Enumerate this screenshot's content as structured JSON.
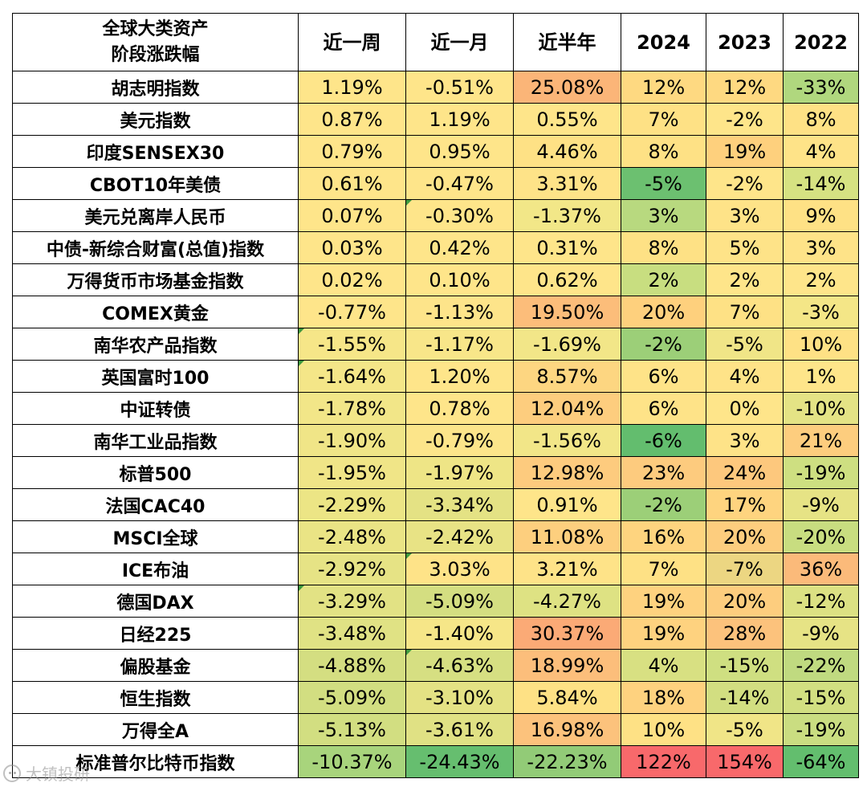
{
  "table": {
    "corner_line1": "全球大类资产",
    "corner_line2": "阶段涨跌幅",
    "columns": [
      "近一周",
      "近一月",
      "近半年",
      "2024",
      "2023",
      "2022"
    ],
    "rows": [
      {
        "name": "胡志明指数",
        "cells": [
          {
            "v": "1.19%",
            "bg": "#fee58a"
          },
          {
            "v": "-0.51%",
            "bg": "#fee58a"
          },
          {
            "v": "25.08%",
            "bg": "#fbb578"
          },
          {
            "v": "12%",
            "bg": "#fed981"
          },
          {
            "v": "12%",
            "bg": "#fed981"
          },
          {
            "v": "-33%",
            "bg": "#b0d77e"
          }
        ]
      },
      {
        "name": "美元指数",
        "cells": [
          {
            "v": "0.87%",
            "bg": "#fee58a"
          },
          {
            "v": "1.19%",
            "bg": "#fee58a"
          },
          {
            "v": "0.55%",
            "bg": "#fee58a"
          },
          {
            "v": "7%",
            "bg": "#fee185"
          },
          {
            "v": "-2%",
            "bg": "#fee58a"
          },
          {
            "v": "8%",
            "bg": "#fee185"
          }
        ]
      },
      {
        "name": "印度SENSEX30",
        "cells": [
          {
            "v": "0.79%",
            "bg": "#fee58a"
          },
          {
            "v": "0.95%",
            "bg": "#fee58a"
          },
          {
            "v": "4.46%",
            "bg": "#fee185"
          },
          {
            "v": "8%",
            "bg": "#fee185"
          },
          {
            "v": "19%",
            "bg": "#fed07d"
          },
          {
            "v": "4%",
            "bg": "#fee388"
          }
        ]
      },
      {
        "name": "CBOT10年美债",
        "cells": [
          {
            "v": "0.61%",
            "bg": "#fee58a"
          },
          {
            "v": "-0.47%",
            "bg": "#fee58a"
          },
          {
            "v": "3.31%",
            "bg": "#fee388"
          },
          {
            "v": "-5%",
            "bg": "#6cc070"
          },
          {
            "v": "-2%",
            "bg": "#fee58a"
          },
          {
            "v": "-14%",
            "bg": "#d6e282"
          }
        ]
      },
      {
        "name": "美元兑离岸人民币",
        "cells": [
          {
            "v": "0.07%",
            "bg": "#fee58a"
          },
          {
            "v": "-0.30%",
            "bg": "#fee58a",
            "flag": true
          },
          {
            "v": "-1.37%",
            "bg": "#f2e788"
          },
          {
            "v": "3%",
            "bg": "#b8d97f"
          },
          {
            "v": "3%",
            "bg": "#fee388"
          },
          {
            "v": "9%",
            "bg": "#fee185"
          }
        ]
      },
      {
        "name": "中债-新综合财富(总值)指数",
        "cells": [
          {
            "v": "0.03%",
            "bg": "#fee58a"
          },
          {
            "v": "0.42%",
            "bg": "#fee58a"
          },
          {
            "v": "0.31%",
            "bg": "#fee58a"
          },
          {
            "v": "8%",
            "bg": "#fee185"
          },
          {
            "v": "5%",
            "bg": "#fee388"
          },
          {
            "v": "3%",
            "bg": "#fee388"
          }
        ]
      },
      {
        "name": "万得货币市场基金指数",
        "cells": [
          {
            "v": "0.02%",
            "bg": "#fee58a"
          },
          {
            "v": "0.10%",
            "bg": "#fee58a"
          },
          {
            "v": "0.62%",
            "bg": "#fee58a"
          },
          {
            "v": "2%",
            "bg": "#c8de80"
          },
          {
            "v": "2%",
            "bg": "#fee58a"
          },
          {
            "v": "2%",
            "bg": "#fee58a"
          }
        ]
      },
      {
        "name": "COMEX黄金",
        "cells": [
          {
            "v": "-0.77%",
            "bg": "#fee58a"
          },
          {
            "v": "-1.13%",
            "bg": "#fde48a"
          },
          {
            "v": "19.50%",
            "bg": "#fcbd7a"
          },
          {
            "v": "20%",
            "bg": "#fed07d"
          },
          {
            "v": "7%",
            "bg": "#fee185"
          },
          {
            "v": "-3%",
            "bg": "#f4e687"
          }
        ]
      },
      {
        "name": "南华农产品指数",
        "flag": true,
        "cells": [
          {
            "v": "-1.55%",
            "bg": "#f6e688"
          },
          {
            "v": "-1.17%",
            "bg": "#f8e689"
          },
          {
            "v": "-1.69%",
            "bg": "#f2e688"
          },
          {
            "v": "-2%",
            "bg": "#9ccf78"
          },
          {
            "v": "-5%",
            "bg": "#f0e587"
          },
          {
            "v": "10%",
            "bg": "#fee185"
          }
        ]
      },
      {
        "name": "英国富时100",
        "flag": true,
        "cells": [
          {
            "v": "-1.64%",
            "bg": "#f4e688"
          },
          {
            "v": "1.20%",
            "bg": "#fee58a"
          },
          {
            "v": "8.57%",
            "bg": "#fdd681"
          },
          {
            "v": "6%",
            "bg": "#fee388"
          },
          {
            "v": "4%",
            "bg": "#fee388"
          },
          {
            "v": "1%",
            "bg": "#fee58a"
          }
        ]
      },
      {
        "name": "中证转债",
        "cells": [
          {
            "v": "-1.78%",
            "bg": "#f2e688"
          },
          {
            "v": "0.78%",
            "bg": "#fee58a"
          },
          {
            "v": "12.04%",
            "bg": "#fdcd7e"
          },
          {
            "v": "6%",
            "bg": "#fee388"
          },
          {
            "v": "0%",
            "bg": "#fee58a"
          },
          {
            "v": "-10%",
            "bg": "#e4e385"
          }
        ]
      },
      {
        "name": "南华工业品指数",
        "cells": [
          {
            "v": "-1.90%",
            "bg": "#f0e587"
          },
          {
            "v": "-0.79%",
            "bg": "#fce58a"
          },
          {
            "v": "-1.56%",
            "bg": "#f2e688"
          },
          {
            "v": "-6%",
            "bg": "#63bd6e"
          },
          {
            "v": "3%",
            "bg": "#fee388"
          },
          {
            "v": "21%",
            "bg": "#fdcd7e"
          }
        ]
      },
      {
        "name": "标普500",
        "cells": [
          {
            "v": "-1.95%",
            "bg": "#f0e587"
          },
          {
            "v": "-1.97%",
            "bg": "#eee586"
          },
          {
            "v": "12.98%",
            "bg": "#fdcb7e"
          },
          {
            "v": "23%",
            "bg": "#fdcb7e"
          },
          {
            "v": "24%",
            "bg": "#fdc87d"
          },
          {
            "v": "-19%",
            "bg": "#cedf81"
          }
        ]
      },
      {
        "name": "法国CAC40",
        "cells": [
          {
            "v": "-2.29%",
            "bg": "#ece585"
          },
          {
            "v": "-3.34%",
            "bg": "#e4e284"
          },
          {
            "v": "0.91%",
            "bg": "#fee58a"
          },
          {
            "v": "-2%",
            "bg": "#9ccf78"
          },
          {
            "v": "17%",
            "bg": "#fed47f"
          },
          {
            "v": "-9%",
            "bg": "#e6e385"
          }
        ]
      },
      {
        "name": "MSCI全球",
        "cells": [
          {
            "v": "-2.48%",
            "bg": "#eae485"
          },
          {
            "v": "-2.42%",
            "bg": "#e8e385"
          },
          {
            "v": "11.08%",
            "bg": "#fdcf7e"
          },
          {
            "v": "16%",
            "bg": "#fed47f"
          },
          {
            "v": "20%",
            "bg": "#fdcd7e"
          },
          {
            "v": "-20%",
            "bg": "#c8dd80"
          }
        ]
      },
      {
        "name": "ICE布油",
        "cells": [
          {
            "v": "-2.92%",
            "bg": "#e6e385"
          },
          {
            "v": "3.03%",
            "bg": "#fee388",
            "flag": true
          },
          {
            "v": "3.21%",
            "bg": "#fee388"
          },
          {
            "v": "7%",
            "bg": "#fee185"
          },
          {
            "v": "-7%",
            "bg": "#ecd682"
          },
          {
            "v": "36%",
            "bg": "#fbba7a"
          }
        ]
      },
      {
        "name": "德国DAX",
        "flag": true,
        "cells": [
          {
            "v": "-3.29%",
            "bg": "#e2e284"
          },
          {
            "v": "-5.09%",
            "bg": "#d4de81"
          },
          {
            "v": "-4.27%",
            "bg": "#dee283"
          },
          {
            "v": "19%",
            "bg": "#fed27f"
          },
          {
            "v": "20%",
            "bg": "#fdcd7e"
          },
          {
            "v": "-12%",
            "bg": "#dce183"
          }
        ]
      },
      {
        "name": "日经225",
        "cells": [
          {
            "v": "-3.48%",
            "bg": "#e0e284"
          },
          {
            "v": "-1.40%",
            "bg": "#f6e688"
          },
          {
            "v": "30.37%",
            "bg": "#fbaa76"
          },
          {
            "v": "19%",
            "bg": "#fed27f"
          },
          {
            "v": "28%",
            "bg": "#fcc27c"
          },
          {
            "v": "-9%",
            "bg": "#e6e385"
          }
        ]
      },
      {
        "name": "偏股基金",
        "cells": [
          {
            "v": "-4.88%",
            "bg": "#d4de81"
          },
          {
            "v": "-4.63%",
            "bg": "#d6df82",
            "flag": true
          },
          {
            "v": "18.99%",
            "bg": "#fcbe7b"
          },
          {
            "v": "4%",
            "bg": "#d8e082"
          },
          {
            "v": "-15%",
            "bg": "#cfdf81"
          },
          {
            "v": "-22%",
            "bg": "#c0da80"
          }
        ]
      },
      {
        "name": "恒生指数",
        "cells": [
          {
            "v": "-5.09%",
            "bg": "#d2de81"
          },
          {
            "v": "-3.10%",
            "bg": "#e4e284"
          },
          {
            "v": "5.84%",
            "bg": "#fee185"
          },
          {
            "v": "18%",
            "bg": "#fed27f"
          },
          {
            "v": "-14%",
            "bg": "#d2de81"
          },
          {
            "v": "-15%",
            "bg": "#d2df81"
          }
        ]
      },
      {
        "name": "万得全A",
        "cells": [
          {
            "v": "-5.13%",
            "bg": "#d2de81"
          },
          {
            "v": "-3.61%",
            "bg": "#e0e184"
          },
          {
            "v": "16.98%",
            "bg": "#fcc27c"
          },
          {
            "v": "10%",
            "bg": "#fee185"
          },
          {
            "v": "-5%",
            "bg": "#f0e587"
          },
          {
            "v": "-19%",
            "bg": "#cadd81"
          }
        ]
      },
      {
        "name": "标准普尔比特币指数",
        "cells": [
          {
            "v": "-10.37%",
            "bg": "#a8d47c"
          },
          {
            "v": "-24.43%",
            "bg": "#66be6f"
          },
          {
            "v": "-22.23%",
            "bg": "#92cb77"
          },
          {
            "v": "122%",
            "bg": "#f8696b"
          },
          {
            "v": "154%",
            "bg": "#f8696b"
          },
          {
            "v": "-64%",
            "bg": "#63be6e"
          }
        ]
      }
    ]
  },
  "watermark": "大镇投研"
}
